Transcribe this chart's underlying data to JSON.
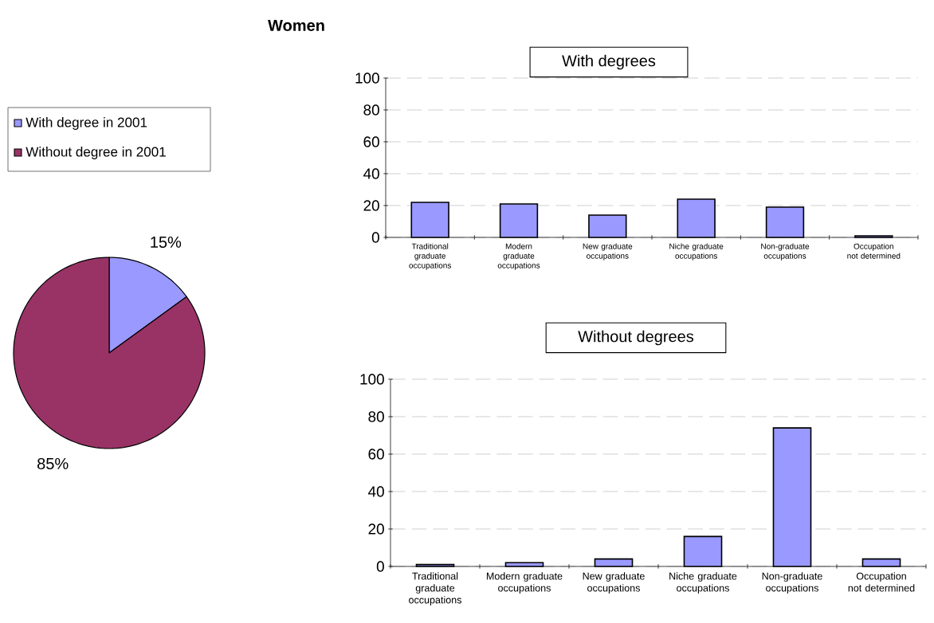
{
  "chart_data": [
    {
      "type": "pie",
      "title": "Women",
      "categories": [
        "With degree in 2001",
        "Without degree in 2001"
      ],
      "values": [
        15,
        85
      ],
      "colors": [
        "#9999ff",
        "#993366"
      ],
      "value_labels": [
        "15%",
        "85%"
      ],
      "legend": "top left"
    },
    {
      "type": "bar",
      "title": "With degrees",
      "categories": [
        "Traditional graduate occupations",
        "Modern graduate occupations",
        "New graduate occupations",
        "Niche graduate occupations",
        "Non-graduate occupations",
        "Occupation not determined"
      ],
      "values": [
        22,
        21,
        14,
        24,
        19,
        1
      ],
      "color": "#9999ff",
      "ylim": [
        0,
        100
      ],
      "yticks": [
        0,
        20,
        40,
        60,
        80,
        100
      ],
      "grid": "y"
    },
    {
      "type": "bar",
      "title": "Without degrees",
      "categories": [
        "Traditional graduate occupations",
        "Modern graduate occupations",
        "New graduate occupations",
        "Niche graduate occupations",
        "Non-graduate occupations",
        "Occupation not determined"
      ],
      "values": [
        1,
        2,
        4,
        16,
        74,
        4
      ],
      "color": "#9999ff",
      "ylim": [
        0,
        100
      ],
      "yticks": [
        0,
        20,
        40,
        60,
        80,
        100
      ],
      "grid": "y"
    }
  ]
}
